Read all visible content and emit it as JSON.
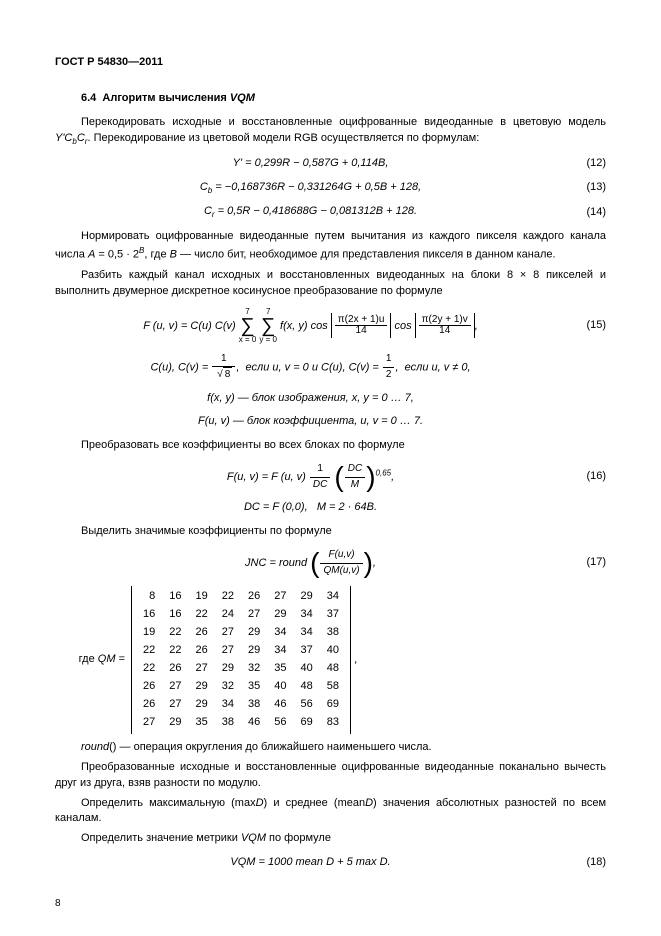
{
  "header": "ГОСТ Р 54830—2011",
  "section": {
    "num": "6.4",
    "title": "Алгоритм вычисления VQM"
  },
  "p1": "Перекодировать исходные и восстановленные оцифрованные видеоданные в цветовую модель Y'CbCr. Перекодирование из цветовой модели RGB осуществляется по формулам:",
  "f12": {
    "text": "Y' = 0,299R − 0,587G + 0,114B,",
    "num": "(12)"
  },
  "f13": {
    "text": "Cb = −0,168736R − 0,331264G + 0,5B + 128,",
    "num": "(13)"
  },
  "f14": {
    "text": "Cr = 0,5R − 0,418688G − 0,081312B + 128.",
    "num": "(14)"
  },
  "p2": "Нормировать оцифрованные видеоданные путем вычитания из каждого пикселя каждого канала числа A = 0,5 · 2^B, где B — число бит, необходимое для представления пикселя в данном канале.",
  "p3": "Разбить каждый канал исходных и восстановленных видеоданных на блоки 8 × 8 пикселей и выполнить двумерное дискретное косинусное преобразование по формуле",
  "f15": {
    "pre": "F (u, v) = C(u) C(v)",
    "sumTop": "7",
    "sumBot1": "x = 0",
    "sumBot2": "y = 0",
    "mid": "f(x, y) cos",
    "cos1top": "π(2x + 1)u",
    "cos1bot": "14",
    "cos2pre": "cos",
    "cos2top": "π(2y + 1)v",
    "cos2bot": "14",
    "tail": ",",
    "num": "(15)"
  },
  "f15a": {
    "pre": "C(u), C(v) = ",
    "sqrt": "8",
    "mid": ",  если u, v = 0 и C(u), C(v) = ",
    "fr_top": "1",
    "fr_bot": "2",
    "tail": ",  если u, v ≠ 0,"
  },
  "f15b": "f(x, y) — блок изображения, x, y = 0 … 7,",
  "f15c": "F(u, v) — блок коэффициента, u, v = 0 … 7.",
  "p4": "Преобразовать все коэффициенты во всех блоках по формуле",
  "f16": {
    "pre": "F(u, v) = F (u, v) ",
    "f1top": "1",
    "f1bot": "DC",
    "f2top": "DC",
    "f2bot": "M",
    "exp": "0,65",
    "tail": ",",
    "num": "(16)"
  },
  "f16a": "DC = F (0,0),   M = 2 · 64B.",
  "p5": "Выделить значимые коэффициенты по формуле",
  "f17": {
    "pre": "JNC = round",
    "top": "F(u,v)",
    "bot": "QM(u,v)",
    "tail": ",",
    "num": "(17)"
  },
  "qm_label": "где QM =",
  "qm": [
    [
      8,
      16,
      19,
      22,
      26,
      27,
      29,
      34
    ],
    [
      16,
      16,
      22,
      24,
      27,
      29,
      34,
      37
    ],
    [
      19,
      22,
      26,
      27,
      29,
      34,
      34,
      38
    ],
    [
      22,
      22,
      26,
      27,
      29,
      34,
      37,
      40
    ],
    [
      22,
      26,
      27,
      29,
      32,
      35,
      40,
      48
    ],
    [
      26,
      27,
      29,
      32,
      35,
      40,
      48,
      58
    ],
    [
      26,
      27,
      29,
      34,
      38,
      46,
      56,
      69
    ],
    [
      27,
      29,
      35,
      38,
      46,
      56,
      69,
      83
    ]
  ],
  "qm_tail": ",",
  "p6": "round() — операция округления до ближайшего наименьшего числа.",
  "p7": "Преобразованные исходные и восстановленные оцифрованные видеоданные поканально вычесть друг из друга, взяв разности по модулю.",
  "p8": "Определить максимальную (maxD) и среднее (meanD) значения абсолютных разностей по всем каналам.",
  "p9": "Определить значение метрики VQM по формуле",
  "f18": {
    "text": "VQM = 1000 mean D + 5 max D.",
    "num": "(18)"
  },
  "pagenum": "8",
  "colors": {
    "text": "#000000",
    "bg": "#ffffff"
  },
  "font": {
    "family": "Arial",
    "size_body": 11,
    "size_sub": 8
  }
}
